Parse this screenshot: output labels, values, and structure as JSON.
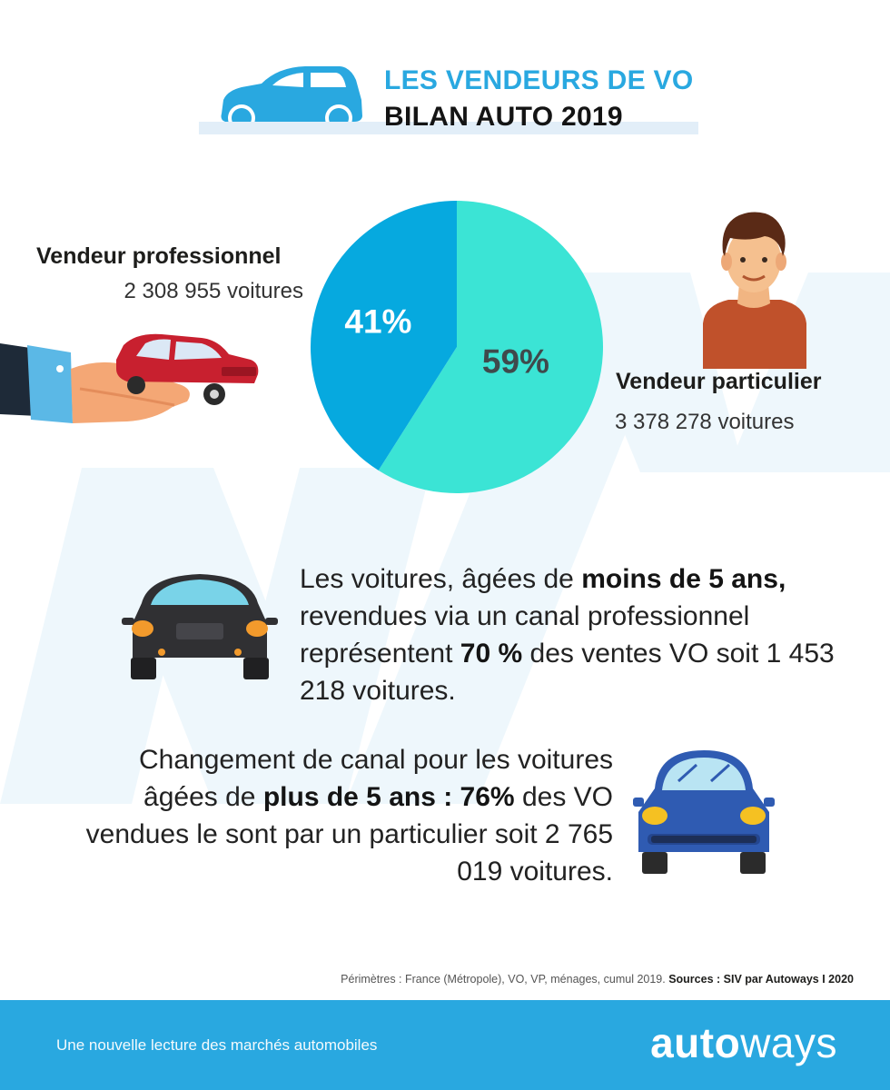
{
  "header": {
    "title_line1": "LES VENDEURS DE VO",
    "title_line2": "BILAN AUTO 2019"
  },
  "chart_data": {
    "type": "pie",
    "slices": [
      {
        "name": "Vendeur particulier",
        "value": 59,
        "label": "59%",
        "color": "#3be4d5",
        "count": "3 378 278 voitures"
      },
      {
        "name": "Vendeur professionnel",
        "value": 41,
        "label": "41%",
        "color": "#06a9df",
        "count": "2 308 955 voitures"
      }
    ]
  },
  "para1": {
    "t1": "Les voitures, âgées de ",
    "b1": "moins de 5 ans,",
    "t2": " revendues via un canal professionnel représentent ",
    "b2": "70 %",
    "t3": " des ventes VO soit 1 453 218 voitures."
  },
  "para2": {
    "t1": "Changement de canal pour les voitures âgées de ",
    "b1": "plus de 5 ans : 76%",
    "t2": " des VO vendues le sont par un particulier soit 2 765 019 voitures."
  },
  "source": {
    "text": "Périmètres : France (Métropole), VO, VP, ménages, cumul 2019. ",
    "bold": "Sources : SIV par Autoways  I  2020"
  },
  "footer": {
    "tagline": "Une nouvelle lecture des marchés automobiles",
    "logo_bold": "auto",
    "logo_light": "ways"
  },
  "colors": {
    "accent": "#29a8e0",
    "pie_pro": "#06a9df",
    "pie_part": "#3be4d5",
    "watermark": "#eef7fc"
  },
  "icons": [
    "car-header-icon",
    "hand-with-car-icon",
    "person-icon",
    "dark-car-front-icon",
    "blue-car-front-icon"
  ]
}
